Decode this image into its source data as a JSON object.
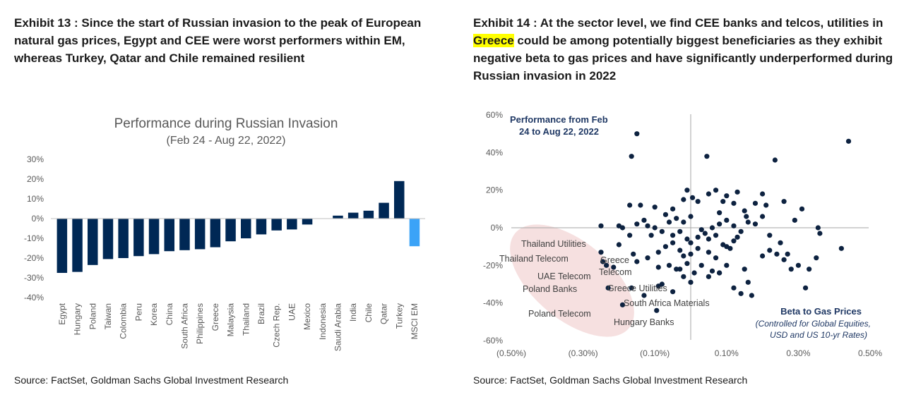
{
  "exhibit13": {
    "title": "Exhibit 13 : Since the start of Russian invasion to the peak of European natural gas prices, Egypt and CEE were worst performers within EM, whereas Turkey, Qatar and Chile remained resilient",
    "source": "Source: FactSet, Goldman Sachs Global Investment Research"
  },
  "exhibit14": {
    "title_prefix": "Exhibit 14 : At the sector level, we find CEE banks and telcos, utilities in ",
    "title_highlight": "Greece",
    "title_suffix": " could be among potentially biggest beneficiaries as they exhibit negative beta to gas prices and have significantly underperformed during Russian invasion in 2022",
    "source": "Source: FactSet, Goldman Sachs Global Investment Research"
  },
  "chart_data": [
    {
      "type": "bar",
      "title": "Performance during Russian Invasion",
      "subtitle": "(Feb 24 - Aug 22, 2022)",
      "xlabel": "",
      "ylabel": "",
      "ylim": [
        -40,
        30
      ],
      "yticks": [
        "30%",
        "20%",
        "10%",
        "0%",
        "-10%",
        "-20%",
        "-30%",
        "-40%"
      ],
      "categories": [
        "Egypt",
        "Hungary",
        "Poland",
        "Taiwan",
        "Colombia",
        "Peru",
        "Korea",
        "China",
        "South Africa",
        "Philippines",
        "Greece",
        "Malaysia",
        "Thailand",
        "Brazil",
        "Czech Rep.",
        "UAE",
        "Mexico",
        "Indonesia",
        "Saudi Arabia",
        "India",
        "Chile",
        "Qatar",
        "Turkey",
        "MSCI EM"
      ],
      "values": [
        -27.5,
        -27,
        -23.5,
        -20.5,
        -20,
        -19,
        -18,
        -16.5,
        -16,
        -15.5,
        -14.5,
        -11.5,
        -10,
        -8,
        -6,
        -5.5,
        -3,
        0,
        1.5,
        3,
        4,
        8,
        19,
        -14
      ],
      "colors": {
        "bar": "#002855",
        "highlight": "#3ba3f7"
      },
      "highlight_category": "MSCI EM",
      "grid": false
    },
    {
      "type": "scatter",
      "title": "Performance from Feb 24 to Aug 22, 2022",
      "title_lines": [
        "Performance from Feb",
        "24 to Aug 22, 2022"
      ],
      "xlabel": "Beta to Gas Prices",
      "xlabel_note_lines": [
        "(Controlled for Global Equities,",
        "USD and US 10-yr Rates)"
      ],
      "xlim": [
        -0.5,
        0.5
      ],
      "ylim": [
        -60,
        60
      ],
      "xticks": [
        "(0.50%)",
        "(0.30%)",
        "(0.10%)",
        "0.10%",
        "0.30%",
        "0.50%"
      ],
      "yticks": [
        "60%",
        "40%",
        "20%",
        "0%",
        "-20%",
        "-40%",
        "-60%"
      ],
      "colors": {
        "point": "#0d2240",
        "ellipse": "#f4dada",
        "axis": "#a6a6a6"
      },
      "points": [
        [
          -0.15,
          50
        ],
        [
          -0.165,
          38
        ],
        [
          0.44,
          46
        ],
        [
          0.045,
          38
        ],
        [
          0.235,
          36
        ],
        [
          -0.25,
          1
        ],
        [
          -0.01,
          20
        ],
        [
          0.1,
          17
        ],
        [
          0.2,
          18
        ],
        [
          -0.14,
          12
        ],
        [
          0.05,
          18
        ],
        [
          0.07,
          20
        ],
        [
          -0.17,
          12
        ],
        [
          -0.1,
          11
        ],
        [
          -0.05,
          10
        ],
        [
          0.02,
          14
        ],
        [
          0.31,
          10
        ],
        [
          0.155,
          6
        ],
        [
          -0.02,
          15
        ],
        [
          0.09,
          14
        ],
        [
          0.12,
          13
        ],
        [
          0.005,
          16
        ],
        [
          0.13,
          19
        ],
        [
          0.2,
          6
        ],
        [
          -0.04,
          5
        ],
        [
          -0.13,
          4
        ],
        [
          -0.06,
          3
        ],
        [
          -0.2,
          1
        ],
        [
          -0.19,
          0
        ],
        [
          -0.15,
          2
        ],
        [
          -0.12,
          1
        ],
        [
          -0.1,
          0
        ],
        [
          -0.08,
          -2
        ],
        [
          -0.05,
          -4
        ],
        [
          -0.03,
          -2
        ],
        [
          -0.01,
          -6
        ],
        [
          0,
          -8
        ],
        [
          0.02,
          -5
        ],
        [
          0.04,
          -3
        ],
        [
          0.06,
          0
        ],
        [
          0.08,
          2
        ],
        [
          0.1,
          4
        ],
        [
          0.12,
          1
        ],
        [
          0.14,
          -2
        ],
        [
          0.16,
          3
        ],
        [
          0.18,
          2
        ],
        [
          0.22,
          -4
        ],
        [
          0.25,
          -8
        ],
        [
          -0.09,
          -13
        ],
        [
          -0.07,
          -10
        ],
        [
          -0.05,
          -8
        ],
        [
          -0.03,
          -12
        ],
        [
          -0.02,
          -15
        ],
        [
          0,
          -14
        ],
        [
          0.02,
          -11
        ],
        [
          0.05,
          -13
        ],
        [
          0.07,
          -16
        ],
        [
          0.09,
          -9
        ],
        [
          0.11,
          -11
        ],
        [
          0.13,
          -5
        ],
        [
          -0.15,
          -18
        ],
        [
          -0.12,
          -16
        ],
        [
          -0.09,
          -21
        ],
        [
          -0.06,
          -20
        ],
        [
          -0.04,
          -22
        ],
        [
          -0.01,
          -19
        ],
        [
          0.01,
          -24
        ],
        [
          0.03,
          -20
        ],
        [
          0.06,
          -23
        ],
        [
          0.08,
          -24
        ],
        [
          0.1,
          -20
        ],
        [
          0.15,
          -22
        ],
        [
          0.2,
          -15
        ],
        [
          0.24,
          -14
        ],
        [
          0.26,
          -17
        ],
        [
          0.28,
          -22
        ],
        [
          0.3,
          -20
        ],
        [
          0.33,
          -22
        ],
        [
          0.35,
          -16
        ],
        [
          0.36,
          -3
        ],
        [
          0.355,
          0
        ],
        [
          0.42,
          -11
        ],
        [
          0.32,
          -32
        ],
        [
          0.27,
          -14
        ],
        [
          -0.02,
          -26
        ],
        [
          0,
          -29
        ],
        [
          0.05,
          -26
        ],
        [
          0.08,
          -24
        ],
        [
          0.12,
          -32
        ],
        [
          0.14,
          -35
        ],
        [
          -0.08,
          -30
        ],
        [
          -0.05,
          -34
        ],
        [
          -0.03,
          -22
        ],
        [
          0.17,
          -36
        ],
        [
          0.16,
          -29
        ],
        [
          0.22,
          -12
        ],
        [
          -0.16,
          -14
        ],
        [
          -0.17,
          -4
        ],
        [
          0.03,
          -1
        ],
        [
          0.05,
          -6
        ],
        [
          0.07,
          -4
        ],
        [
          -0.11,
          -4
        ],
        [
          0.1,
          -10
        ],
        [
          0.12,
          -7
        ],
        [
          -0.2,
          -9
        ],
        [
          0.0,
          6
        ],
        [
          -0.02,
          3
        ],
        [
          0.15,
          9
        ],
        [
          0.18,
          13
        ],
        [
          0.21,
          12
        ],
        [
          0.26,
          14
        ],
        [
          0.29,
          4
        ],
        [
          -0.07,
          7
        ],
        [
          0.08,
          8
        ],
        [
          -0.25,
          -13
        ],
        [
          -0.235,
          -20
        ],
        [
          -0.215,
          -21
        ],
        [
          -0.245,
          -18
        ],
        [
          -0.23,
          -32
        ],
        [
          -0.19,
          -41
        ],
        [
          -0.13,
          -36
        ],
        [
          -0.095,
          -44
        ],
        [
          -0.165,
          -32
        ],
        [
          -0.09,
          -31
        ]
      ],
      "annotations": [
        "Thailand Utilities",
        "Thailand Telecom",
        "Greece",
        "Telecom",
        "UAE Telecom",
        "Poland Banks",
        "Greece Utilities",
        "South Africa Materials",
        "Poland Telecom",
        "Hungary Banks"
      ]
    }
  ]
}
